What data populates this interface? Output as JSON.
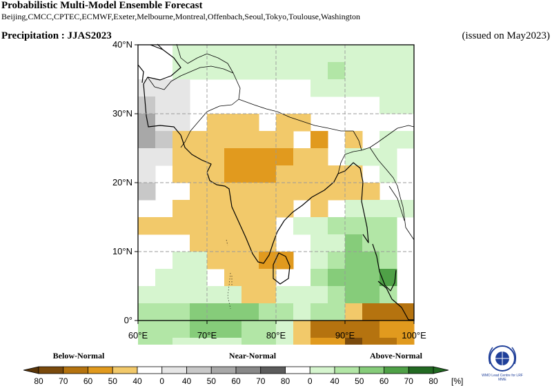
{
  "header": {
    "title": "Probabilistic Multi-Model Ensemble Forecast",
    "centres": "Beijing,CMCC,CPTEC,ECMWF,Exeter,Melbourne,Montreal,Offenbach,Seoul,Tokyo,Toulouse,Washington",
    "variable": "Precipitation : JJAS2023",
    "issued": "(issued on May2023)"
  },
  "map": {
    "lon_range": [
      60,
      100
    ],
    "lat_range": [
      0,
      40
    ],
    "lon_ticks": [
      "60°E",
      "70°E",
      "80°E",
      "90°E",
      "100°E"
    ],
    "lat_ticks": [
      "0°",
      "10°N",
      "20°N",
      "30°N",
      "40°N"
    ],
    "cell_deg": 2.5
  },
  "legend": {
    "categories": [
      "Below-Normal",
      "Near-Normal",
      "Above-Normal"
    ],
    "labels": [
      "80",
      "70",
      "60",
      "50",
      "40",
      "0",
      "40",
      "50",
      "60",
      "70",
      "80",
      "0",
      "40",
      "50",
      "60",
      "70",
      "80"
    ],
    "unit": "[%]",
    "colors": [
      "#7a4a0c",
      "#b5730f",
      "#e19a1e",
      "#f2c96a",
      "#ffffff",
      "#e6e6e6",
      "#c8c8c8",
      "#a8a8a8",
      "#888888",
      "#5c5c5c",
      "#ffffff",
      "#d6f5cf",
      "#b2e6a6",
      "#86cc7a",
      "#4fa147",
      "#226a22"
    ]
  },
  "logo_text": "WMO Lead Centre for LRF MME",
  "chart_data": {
    "type": "heatmap",
    "title": "Precipitation : JJAS2023",
    "region": "South Asia",
    "lon_range": [
      60,
      100
    ],
    "lat_range": [
      0,
      40
    ],
    "grid_step_deg": 2.5,
    "color_by_code": {
      "b1": "#f2c96a",
      "b2": "#e19a1e",
      "b3": "#b5730f",
      "b4": "#7a4a0c",
      "n1": "#e6e6e6",
      "n2": "#c8c8c8",
      "n3": "#a8a8a8",
      "n4": "#888888",
      "a1": "#d6f5cf",
      "a2": "#b2e6a6",
      "a3": "#86cc7a",
      "a4": "#4fa147"
    },
    "rows": [
      "....a1a1a1a1a1a1a1a1a1a1a1a1a1a1",
      "....a1a1a1a1a1a1a1a1a1a2a1a1a1a1",
      "n1n1n1..............a1a1a1a1a1a1",
      "n2n1n1......................a1a1",
      "n3n1n1..b1b1b1..b1b1............",
      "n3n2b1b1b1b1b1b1b1..b2..b1..a1a1",
      "n1n1b1b1b1b2b2b2b2b1b1..a1a1a1..",
      "n1..b1b1b1b2b2b2b1b1b1b1b1..a1..",
      "n2....b1b1b1b1b1b1b1b1b1b1b1....",
      "....b1b1b1b1b1b1b1..b1..a1a1a1a1",
      "b1b1b1b1b1b1b1b1..a1a1a2a2a2a2..",
      "......b1b1b1b1b1....a1a1a3a2a2..",
      "....a1a1b1b1b1b2b2..a1a2a3a3a2..",
      "..a1a1a1..b1b1b1....a2a3a3a3a4..",
      "a1a1a1a1a1a1b1b1a1a1a1a2a3a3a2..",
      "a2a2a2a3a3a3a3a2a2a1a2a2b1b3b3b3",
      "a2a2a2a3a3a3a2a2a1b1b3b3b3b3b2b2",
      "a2a2a1a1a1a1a2a2a1b1b2b2b4b3b3b2",
      "a1b1b2b2b2b2b2b3b3b3b4b4b4b4b3b3",
      "b3b2b2b2b2b2b2b2b3b3b3b4b4b4b4b4"
    ]
  }
}
